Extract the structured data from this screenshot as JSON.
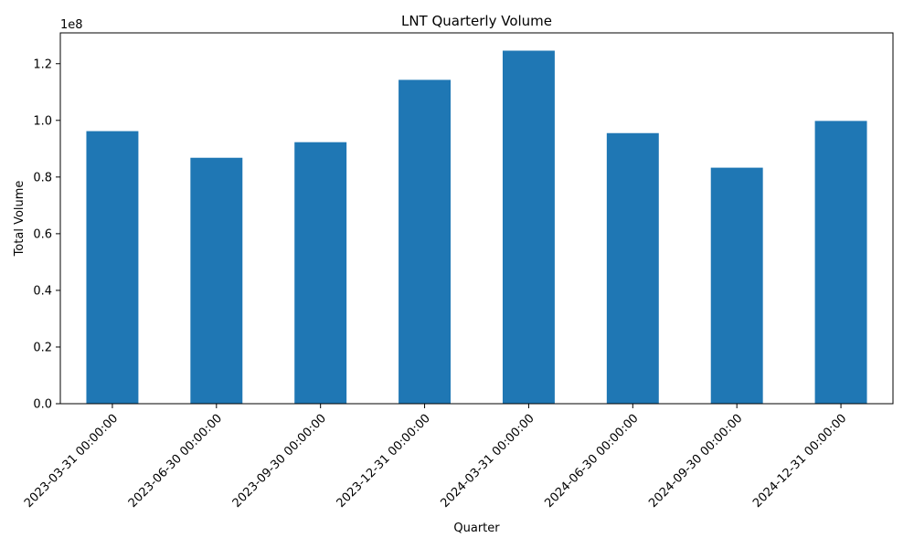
{
  "chart_data": {
    "type": "bar",
    "title": "LNT Quarterly Volume",
    "xlabel": "Quarter",
    "ylabel": "Total Volume",
    "y_scale_label": "1e8",
    "categories": [
      "2023-03-31 00:00:00",
      "2023-06-30 00:00:00",
      "2023-09-30 00:00:00",
      "2023-12-31 00:00:00",
      "2024-03-31 00:00:00",
      "2024-06-30 00:00:00",
      "2024-09-30 00:00:00",
      "2024-12-31 00:00:00"
    ],
    "values": [
      96200000,
      86800000,
      92300000,
      114300000,
      124600000,
      95500000,
      83300000,
      99800000
    ],
    "ylim": [
      0,
      130880000
    ],
    "yticks": [
      0,
      20000000,
      40000000,
      60000000,
      80000000,
      100000000,
      120000000
    ],
    "ytick_labels": [
      "0.0",
      "0.2",
      "0.4",
      "0.6",
      "0.8",
      "1.0",
      "1.2"
    ],
    "grid": false,
    "legend": false,
    "bar_color": "#1f77b4",
    "x_tick_rotation_deg": 45
  }
}
